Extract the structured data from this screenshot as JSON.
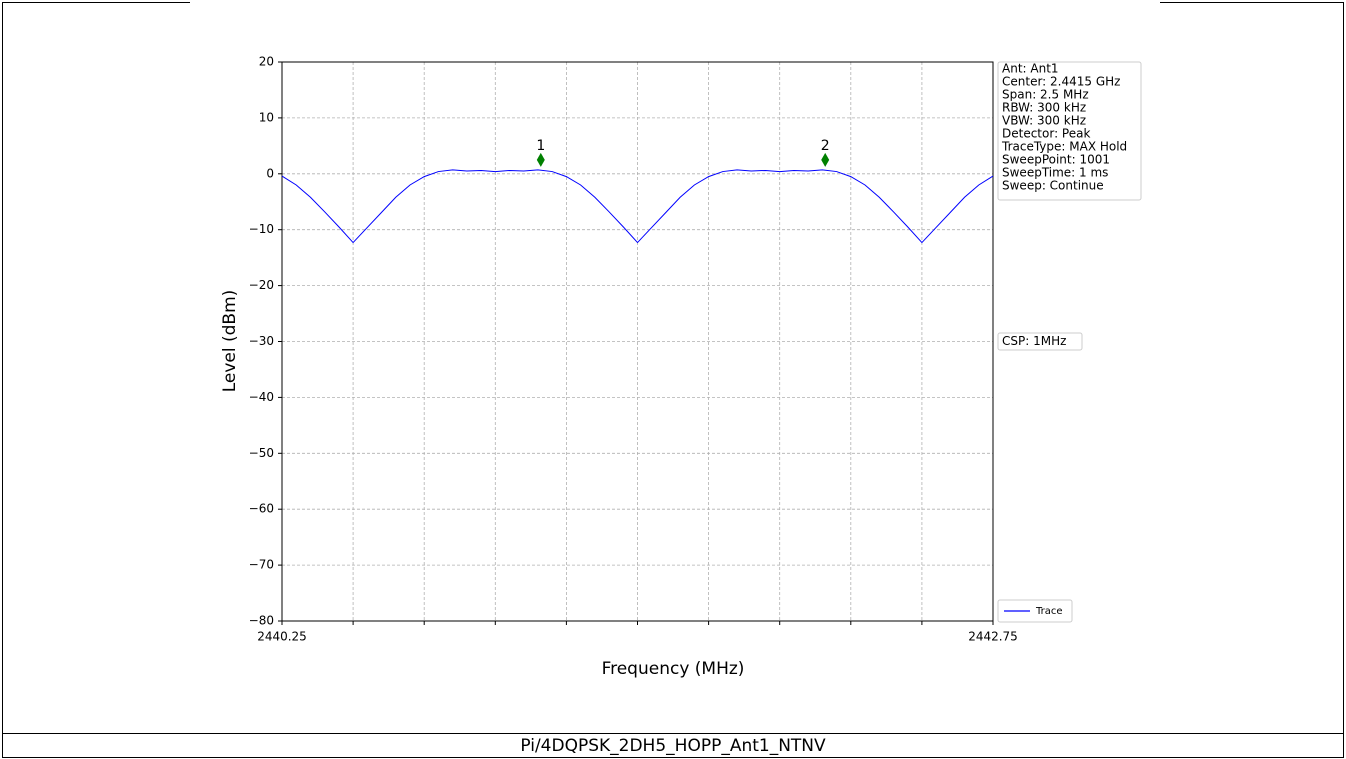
{
  "chart_data": {
    "type": "line",
    "xlabel": "Frequency (MHz)",
    "ylabel": "Level (dBm)",
    "caption": "Pi/4DQPSK_2DH5_HOPP_Ant1_NTNV",
    "xlim": [
      2440.25,
      2442.75
    ],
    "ylim": [
      -80,
      20
    ],
    "xticks": [
      {
        "value": 2440.25,
        "label": "2440.25"
      },
      {
        "value": 2440.5,
        "label": null
      },
      {
        "value": 2440.75,
        "label": null
      },
      {
        "value": 2441.0,
        "label": null
      },
      {
        "value": 2441.25,
        "label": null
      },
      {
        "value": 2441.5,
        "label": null
      },
      {
        "value": 2441.75,
        "label": null
      },
      {
        "value": 2442.0,
        "label": null
      },
      {
        "value": 2442.25,
        "label": null
      },
      {
        "value": 2442.5,
        "label": null
      },
      {
        "value": 2442.75,
        "label": "2442.75"
      }
    ],
    "yticks": [
      {
        "value": -80,
        "label": "−80"
      },
      {
        "value": -70,
        "label": "−70"
      },
      {
        "value": -60,
        "label": "−60"
      },
      {
        "value": -50,
        "label": "−50"
      },
      {
        "value": -40,
        "label": "−40"
      },
      {
        "value": -30,
        "label": "−30"
      },
      {
        "value": -20,
        "label": "−20"
      },
      {
        "value": -10,
        "label": "−10"
      },
      0,
      10,
      20
    ],
    "grid": true,
    "x": [
      2440.25,
      2440.3,
      2440.35,
      2440.4,
      2440.45,
      2440.5,
      2440.55,
      2440.6,
      2440.65,
      2440.7,
      2440.75,
      2440.8,
      2440.85,
      2440.9,
      2440.95,
      2441.0,
      2441.05,
      2441.1,
      2441.15,
      2441.2,
      2441.25,
      2441.3,
      2441.35,
      2441.4,
      2441.45,
      2441.5,
      2441.55,
      2441.6,
      2441.65,
      2441.7,
      2441.75,
      2441.8,
      2441.85,
      2441.9,
      2441.95,
      2442.0,
      2442.05,
      2442.1,
      2442.15,
      2442.2,
      2442.25,
      2442.3,
      2442.35,
      2442.4,
      2442.45,
      2442.5,
      2442.55,
      2442.6,
      2442.65,
      2442.7,
      2442.75
    ],
    "series": [
      {
        "name": "Trace",
        "color": "#0000ff",
        "values": [
          -0.4,
          -2.0,
          -4.2,
          -6.8,
          -9.5,
          -12.3,
          -9.6,
          -6.9,
          -4.2,
          -2.0,
          -0.5,
          0.4,
          0.7,
          0.5,
          0.6,
          0.4,
          0.6,
          0.5,
          0.7,
          0.4,
          -0.5,
          -2.0,
          -4.2,
          -6.8,
          -9.5,
          -12.3,
          -9.6,
          -6.9,
          -4.2,
          -2.0,
          -0.5,
          0.4,
          0.7,
          0.5,
          0.6,
          0.4,
          0.6,
          0.5,
          0.7,
          0.4,
          -0.5,
          -2.0,
          -4.2,
          -6.8,
          -9.5,
          -12.3,
          -9.6,
          -6.9,
          -4.2,
          -2.0,
          -0.4
        ]
      }
    ],
    "markers": [
      {
        "label": "1",
        "x": 2441.16,
        "value": 0.7,
        "color": "#008000"
      },
      {
        "label": "2",
        "x": 2442.16,
        "value": 0.7,
        "color": "#008000"
      }
    ],
    "info": [
      "Ant: Ant1",
      "Center: 2.4415 GHz",
      "Span: 2.5 MHz",
      "RBW: 300 kHz",
      "VBW: 300 kHz",
      "Detector: Peak",
      "TraceType: MAX Hold",
      "SweepPoint: 1001",
      "SweepTime: 1 ms",
      "Sweep: Continue"
    ],
    "csp": "CSP: 1MHz"
  }
}
